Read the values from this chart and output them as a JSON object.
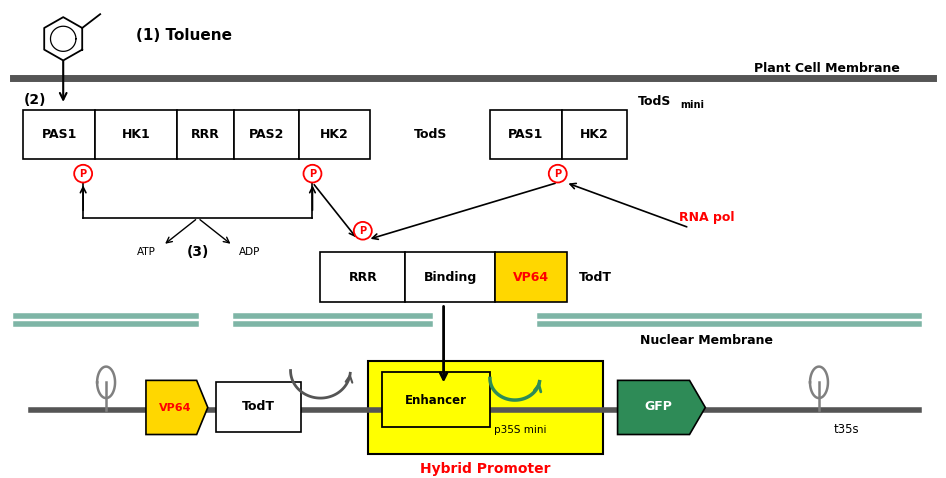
{
  "bg_color": "#ffffff",
  "toluene_text": "(1) Toluene",
  "plant_membrane_text": "Plant Cell Membrane",
  "nuclear_membrane_text": "Nuclear Membrane",
  "rna_pol_text": "RNA pol",
  "todt_label": "TodT",
  "hybrid_promoter_text": "Hybrid Promoter",
  "p35s_mini_text": "p35S mini",
  "t35s_text": "t35s",
  "atp_text": "ATP",
  "adp_text": "ADP",
  "label3": "(3)",
  "label2": "(2)",
  "membrane_color": "#555555",
  "nuclear_color": "#7EB5A6",
  "gfp_color": "#2E8B57",
  "vp64_color": "#FFD700"
}
